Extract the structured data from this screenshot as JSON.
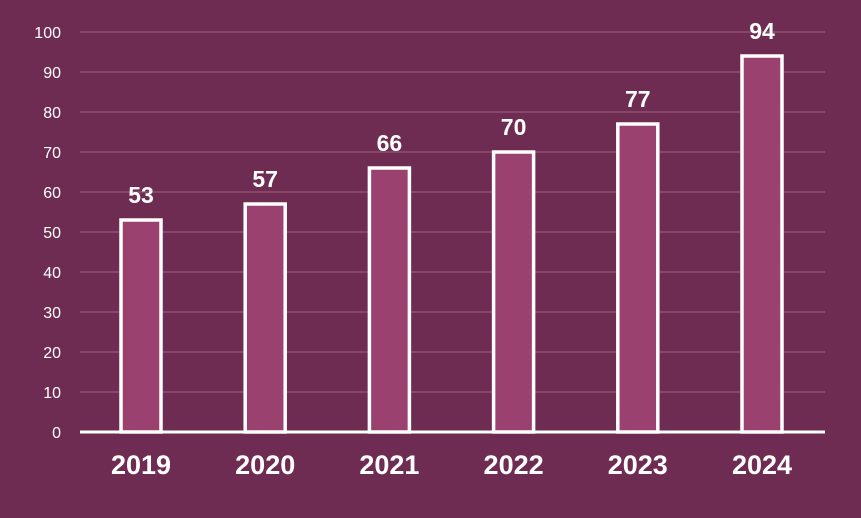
{
  "chart_data": {
    "type": "bar",
    "categories": [
      "2019",
      "2020",
      "2021",
      "2022",
      "2023",
      "2024"
    ],
    "values": [
      53,
      57,
      66,
      70,
      77,
      94
    ],
    "title": "",
    "xlabel": "",
    "ylabel": "",
    "ylim": [
      0,
      100
    ],
    "yticks": [
      0,
      10,
      20,
      30,
      40,
      50,
      60,
      70,
      80,
      90,
      100
    ],
    "grid": true,
    "legend": "none",
    "data_labels": true,
    "colors": {
      "background": "#6f2c52",
      "bar_fill": "#9b4170",
      "bar_outline": "#ffffff",
      "gridline": "#a06080",
      "text": "#ffffff"
    }
  }
}
